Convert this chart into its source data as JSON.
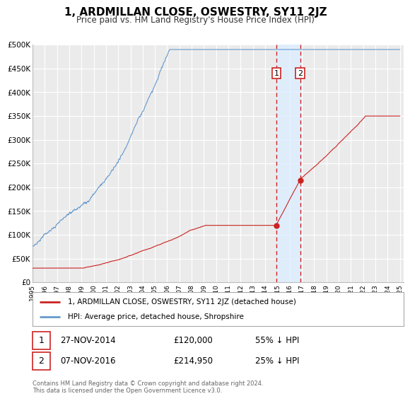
{
  "title": "1, ARDMILLAN CLOSE, OSWESTRY, SY11 2JZ",
  "subtitle": "Price paid vs. HM Land Registry's House Price Index (HPI)",
  "background_color": "#ffffff",
  "plot_bg_color": "#ebebeb",
  "grid_color": "#ffffff",
  "hpi_color": "#6699cc",
  "price_color": "#cc2222",
  "marker_color": "#cc2222",
  "sale1_date_num": 2014.92,
  "sale2_date_num": 2016.87,
  "sale1_price": 120000,
  "sale2_price": 214950,
  "legend_label_price": "1, ARDMILLAN CLOSE, OSWESTRY, SY11 2JZ (detached house)",
  "legend_label_hpi": "HPI: Average price, detached house, Shropshire",
  "table_row1_label": "1",
  "table_row1_date": "27-NOV-2014",
  "table_row1_price": "£120,000",
  "table_row1_pct": "55% ↓ HPI",
  "table_row2_label": "2",
  "table_row2_date": "07-NOV-2016",
  "table_row2_price": "£214,950",
  "table_row2_pct": "25% ↓ HPI",
  "footer": "Contains HM Land Registry data © Crown copyright and database right 2024.\nThis data is licensed under the Open Government Licence v3.0.",
  "shade_color": "#ddeeff",
  "vline_color": "#cc2222",
  "ylim": [
    0,
    500000
  ],
  "yticks": [
    0,
    50000,
    100000,
    150000,
    200000,
    250000,
    300000,
    350000,
    400000,
    450000,
    500000
  ],
  "ytick_labels": [
    "£0",
    "£50K",
    "£100K",
    "£150K",
    "£200K",
    "£250K",
    "£300K",
    "£350K",
    "£400K",
    "£450K",
    "£500K"
  ]
}
